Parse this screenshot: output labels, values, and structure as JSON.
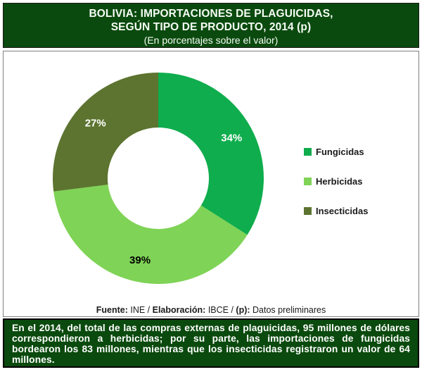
{
  "header": {
    "title_line1": "BOLIVIA: IMPORTACIONES DE PLAGUICIDAS,",
    "title_line2": "SEGÚN TIPO DE PRODUCTO, 2014 (p)",
    "subtitle": "(En porcentajes sobre el valor)",
    "bg_color": "#0b4a0e",
    "text_color": "#f5fcf5"
  },
  "chart_data": {
    "type": "pie",
    "donut": true,
    "start_angle_deg": 0,
    "direction": "clockwise",
    "value_format": "percent",
    "legend_position": "right",
    "title": "BOLIVIA: IMPORTACIONES DE PLAGUICIDAS, SEGÚN TIPO DE PRODUCTO, 2014 (p)",
    "subtitle": "(En porcentajes sobre el valor)",
    "series": [
      {
        "label": "Fungicidas",
        "value": 34,
        "color": "#0fad4d",
        "label_color": "#ffffff"
      },
      {
        "label": "Herbicidas",
        "value": 39,
        "color": "#7fd356",
        "label_color": "#000000"
      },
      {
        "label": "Insecticidas",
        "value": 27,
        "color": "#5c742f",
        "label_color": "#ffffff"
      }
    ]
  },
  "source": {
    "fuente_label": "Fuente:",
    "fuente_value": " INE / ",
    "elaboracion_label": "Elaboración:",
    "elaboracion_value": " IBCE / ",
    "p_label": "(p):",
    "p_value": " Datos preliminares"
  },
  "footer": {
    "text": "En el 2014, del total de las compras externas de plaguicidas, 95 millones de dólares correspondieron a herbicidas; por su parte, las importaciones de fungicidas bordearon los 83 millones, mientras que los insecticidas registraron un valor de 64 millones.",
    "bg_color": "#0b4a0e",
    "text_color": "#ffffff"
  }
}
